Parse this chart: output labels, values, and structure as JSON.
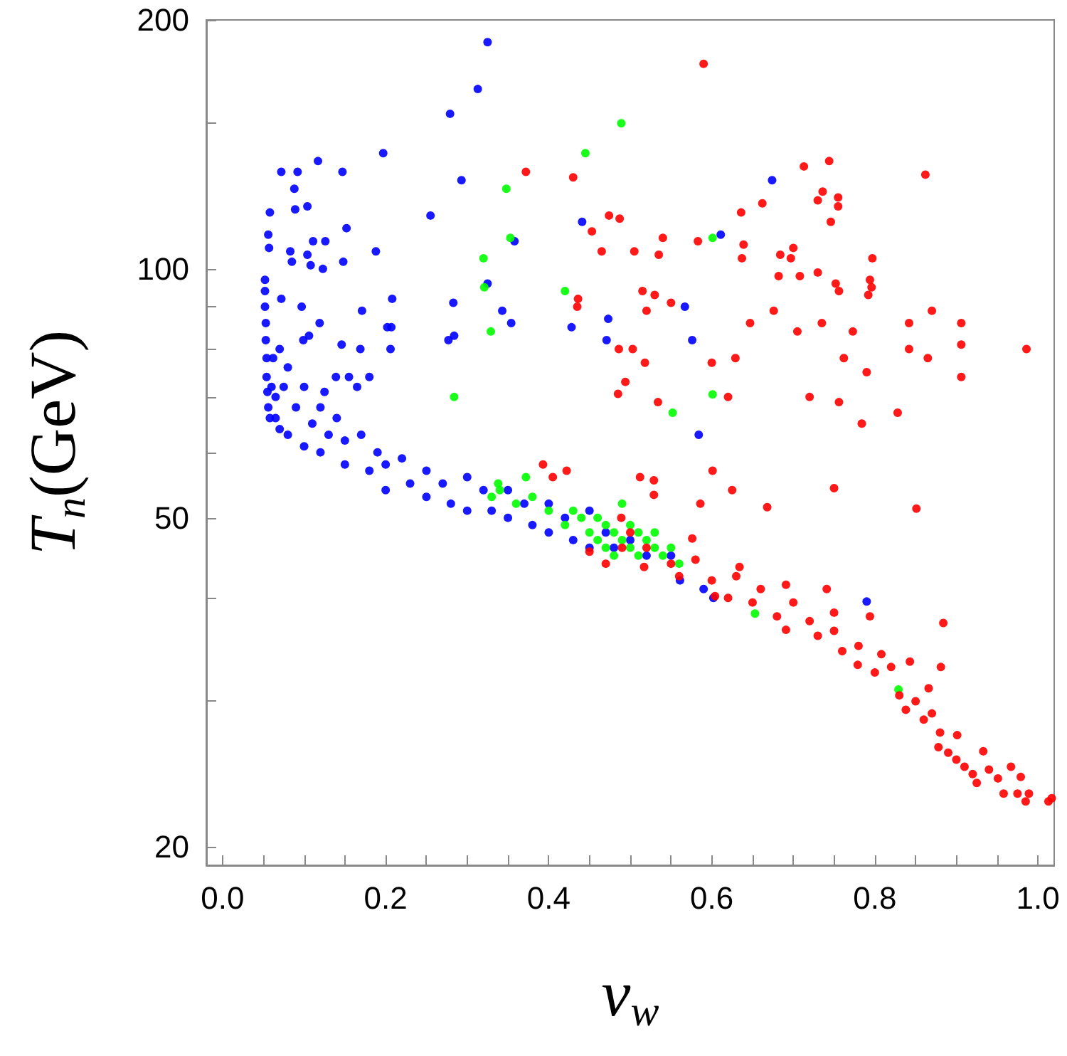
{
  "chart_data": {
    "type": "scatter",
    "xlabel": "v$_{w}$",
    "ylabel": "T$_{n}$(GeV)",
    "log": "y",
    "grid": false,
    "marker": "circle",
    "xlim": [
      -0.02,
      1.02
    ],
    "ylim": [
      19,
      200
    ],
    "xticks": [
      {
        "value": 0,
        "label": "0.0"
      },
      {
        "value": 0.05,
        "label": null
      },
      0.2,
      {
        "value": 0.1,
        "label": null
      },
      {
        "value": 0.15,
        "label": null
      },
      {
        "value": 0.25,
        "label": null
      },
      {
        "value": 0.3,
        "label": null
      },
      {
        "value": 0.35,
        "label": null
      },
      0.4,
      {
        "value": 0.45,
        "label": null
      },
      {
        "value": 0.5,
        "label": null
      },
      {
        "value": 0.55,
        "label": null
      },
      0.6,
      {
        "value": 0.65,
        "label": null
      },
      {
        "value": 0.7,
        "label": null
      },
      {
        "value": 0.75,
        "label": null
      },
      0.8,
      {
        "value": 0.85,
        "label": null
      },
      {
        "value": 0.9,
        "label": null
      },
      {
        "value": 0.95,
        "label": null
      },
      {
        "value": 1,
        "label": "1.0"
      }
    ],
    "yticks": [
      20,
      {
        "value": 30,
        "label": null
      },
      {
        "value": 40,
        "label": null
      },
      50,
      {
        "value": 60,
        "label": null
      },
      {
        "value": 70,
        "label": null
      },
      {
        "value": 80,
        "label": null
      },
      {
        "value": 90,
        "label": null
      },
      100,
      {
        "value": 150,
        "label": null
      },
      200
    ],
    "series": [
      {
        "color": "#0000ff",
        "x": [
          0.052,
          0.052,
          0.052,
          0.053,
          0.053,
          0.054,
          0.054,
          0.055,
          0.056,
          0.058,
          0.06,
          0.062,
          0.065,
          0.065,
          0.07,
          0.07,
          0.075,
          0.08,
          0.08,
          0.09,
          0.1,
          0.1,
          0.11,
          0.12,
          0.12,
          0.13,
          0.14,
          0.15,
          0.15,
          0.17,
          0.18,
          0.19,
          0.2,
          0.2,
          0.22,
          0.23,
          0.25,
          0.25,
          0.27,
          0.28,
          0.3,
          0.3,
          0.32,
          0.33,
          0.35,
          0.35,
          0.37,
          0.38,
          0.4,
          0.4,
          0.42,
          0.43,
          0.45,
          0.45,
          0.47,
          0.48,
          0.5,
          0.52,
          0.55,
          0.325,
          0.313,
          0.279,
          0.197,
          0.147,
          0.117,
          0.092,
          0.072,
          0.293,
          0.088,
          0.104,
          0.089,
          0.058,
          0.255,
          0.152,
          0.056,
          0.126,
          0.111,
          0.358,
          0.188,
          0.057,
          0.083,
          0.104,
          0.085,
          0.108,
          0.123,
          0.148,
          0.325,
          0.283,
          0.072,
          0.097,
          0.171,
          0.208,
          0.343,
          0.119,
          0.207,
          0.202,
          0.354,
          0.106,
          0.099,
          0.284,
          0.277,
          0.428,
          0.473,
          0.471,
          0.146,
          0.169,
          0.206,
          0.139,
          0.155,
          0.18,
          0.125,
          0.165,
          0.441,
          0.674,
          0.611,
          0.567,
          0.576,
          0.584,
          0.79,
          0.561,
          0.59,
          0.602
        ],
        "values": [
          97,
          94,
          90,
          86,
          82,
          78,
          74,
          71,
          68,
          66,
          72,
          78,
          70,
          66,
          80,
          64,
          72,
          76,
          63,
          68,
          72,
          61,
          65,
          68,
          60,
          63,
          66,
          58,
          62,
          63,
          57,
          60,
          54,
          58,
          59,
          55,
          53,
          57,
          55,
          52,
          51,
          56,
          54,
          51,
          50,
          54,
          52,
          49,
          48,
          52,
          50,
          47,
          46,
          51,
          48,
          46,
          47,
          45,
          45,
          188,
          165,
          154,
          138,
          131,
          135,
          131,
          131,
          128,
          125,
          119,
          118,
          117,
          116,
          112,
          110,
          108,
          108,
          108,
          105,
          106,
          105,
          104,
          102,
          101,
          100,
          102,
          96,
          91,
          92,
          90,
          89,
          92,
          89,
          86,
          85,
          85,
          86,
          83,
          82,
          83,
          82,
          85,
          87,
          82,
          81,
          80,
          80,
          74,
          74,
          74,
          71,
          72,
          114,
          128,
          110,
          90,
          82,
          63,
          39.6,
          42,
          41,
          40
        ]
      },
      {
        "color": "#00ff00",
        "x": [
          0.489,
          0.445,
          0.348,
          0.353,
          0.32,
          0.321,
          0.329,
          0.42,
          0.284,
          0.601,
          0.601,
          0.552,
          0.653,
          0.829,
          0.372,
          0.338,
          0.33,
          0.34,
          0.36,
          0.38,
          0.4,
          0.42,
          0.43,
          0.44,
          0.45,
          0.46,
          0.46,
          0.47,
          0.47,
          0.48,
          0.48,
          0.49,
          0.49,
          0.5,
          0.5,
          0.51,
          0.51,
          0.52,
          0.53,
          0.53,
          0.54,
          0.55,
          0.56
        ],
        "values": [
          150,
          138,
          125,
          109,
          103,
          95,
          84,
          94,
          70,
          109,
          70.5,
          67,
          38.3,
          31,
          56,
          55,
          53,
          54,
          52,
          53,
          51,
          49,
          51,
          50,
          48,
          47,
          50,
          46,
          49,
          45,
          48,
          47,
          52,
          46,
          49,
          45,
          48,
          47,
          46,
          48,
          45,
          46,
          44
        ]
      },
      {
        "color": "#ff0000",
        "x": [
          0.372,
          0.43,
          0.474,
          0.487,
          0.453,
          0.465,
          0.505,
          0.436,
          0.435,
          0.486,
          0.503,
          0.494,
          0.485,
          0.59,
          0.713,
          0.744,
          0.862,
          0.736,
          0.73,
          0.755,
          0.755,
          0.746,
          0.636,
          0.662,
          0.54,
          0.583,
          0.639,
          0.637,
          0.684,
          0.697,
          0.7,
          0.797,
          0.535,
          0.682,
          0.708,
          0.73,
          0.752,
          0.756,
          0.794,
          0.796,
          0.792,
          0.515,
          0.53,
          0.55,
          0.52,
          0.676,
          0.647,
          0.705,
          0.735,
          0.773,
          0.842,
          0.87,
          0.906,
          0.906,
          0.986,
          0.842,
          0.865,
          0.762,
          0.6,
          0.629,
          0.518,
          0.79,
          0.906,
          0.72,
          0.756,
          0.828,
          0.784,
          0.62,
          0.534,
          0.601,
          0.512,
          0.529,
          0.529,
          0.586,
          0.625,
          0.668,
          0.75,
          0.851,
          0.741,
          0.794,
          0.884,
          0.881,
          0.843,
          0.393,
          0.405,
          0.422,
          1.013,
          1.017,
          0.985,
          0.989,
          0.975,
          0.979,
          0.967,
          0.958,
          0.933,
          0.951,
          0.517,
          0.604,
          0.691,
          0.779,
          0.838,
          0.878,
          0.925,
          0.489,
          0.576,
          0.634,
          0.691,
          0.75,
          0.808,
          0.866,
          0.901,
          0.45,
          0.47,
          0.49,
          0.5,
          0.52,
          0.55,
          0.56,
          0.58,
          0.6,
          0.62,
          0.63,
          0.65,
          0.66,
          0.68,
          0.7,
          0.72,
          0.73,
          0.75,
          0.76,
          0.78,
          0.8,
          0.82,
          0.83,
          0.85,
          0.86,
          0.87,
          0.88,
          0.89,
          0.9,
          0.91,
          0.92,
          0.94
        ],
        "values": [
          131,
          129,
          116,
          115,
          111,
          105,
          105,
          92,
          90,
          80,
          80,
          73,
          70.6,
          177,
          133,
          135,
          130,
          124,
          121,
          122,
          119,
          114,
          117,
          120,
          109,
          108,
          107,
          103,
          104,
          103,
          106,
          103,
          104,
          98,
          98,
          99,
          96,
          94,
          97,
          95,
          93,
          94,
          93,
          91,
          89,
          89,
          86,
          84,
          86,
          84,
          86,
          89,
          86,
          81,
          80,
          80,
          78,
          78,
          77,
          78,
          77,
          75,
          74,
          70,
          69,
          67,
          65,
          70,
          69,
          57,
          56,
          55.5,
          53.3,
          52,
          54,
          51.5,
          54.3,
          51.3,
          41,
          38,
          37.3,
          33,
          33.5,
          58,
          56,
          57,
          22.7,
          22.9,
          22.7,
          23.2,
          23.2,
          24.3,
          25,
          23.2,
          26.1,
          24.2,
          43.6,
          40.2,
          36.6,
          33.2,
          29.3,
          26.4,
          23.9,
          50,
          47.2,
          43.6,
          41.5,
          38.4,
          34.2,
          31.1,
          27.3,
          45.5,
          44,
          46,
          48,
          46,
          44,
          42.5,
          44.5,
          42,
          40,
          42.5,
          39.5,
          41,
          38,
          39.5,
          37.5,
          36,
          36.5,
          34.5,
          35,
          32.5,
          33,
          30.5,
          30,
          28.5,
          29,
          27.5,
          26,
          25.5,
          25,
          24.5,
          24.8
        ]
      }
    ]
  }
}
